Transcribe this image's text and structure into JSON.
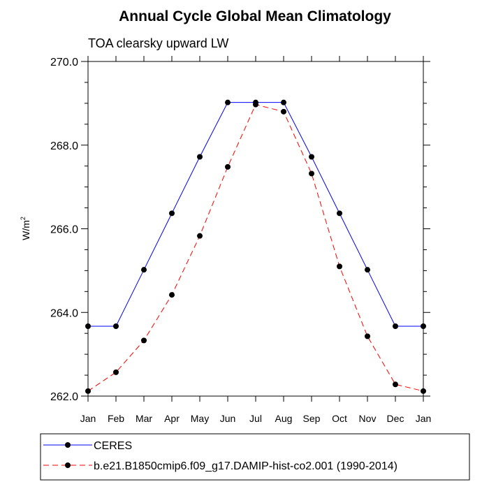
{
  "chart_data": {
    "type": "line",
    "title": "Annual Cycle Global Mean Climatology",
    "subtitle": "TOA clearsky upward LW",
    "ylabel_base": "W/m",
    "ylabel_sup": "2",
    "xlabel": "",
    "categories": [
      "Jan",
      "Feb",
      "Mar",
      "Apr",
      "May",
      "Jun",
      "Jul",
      "Aug",
      "Sep",
      "Oct",
      "Nov",
      "Dec",
      "Jan"
    ],
    "ylim": [
      262.0,
      270.0
    ],
    "yticks": [
      "262.0",
      "264.0",
      "266.0",
      "268.0",
      "270.0"
    ],
    "series": [
      {
        "name": "CERES",
        "color": "#0000ff",
        "dash": "solid",
        "values": [
          263.67,
          263.67,
          265.02,
          266.37,
          267.72,
          269.02,
          269.02,
          269.02,
          267.72,
          266.37,
          265.02,
          263.67,
          263.67
        ]
      },
      {
        "name": "b.e21.B1850cmip6.f09_g17.DAMIP-hist-co2.001 (1990-2014)",
        "color": "#ff0000",
        "dash": "dashed",
        "values": [
          262.12,
          262.57,
          263.33,
          264.42,
          265.83,
          267.48,
          268.97,
          268.8,
          267.32,
          265.1,
          263.43,
          262.28,
          262.12
        ]
      }
    ],
    "legend_position": "bottom"
  }
}
